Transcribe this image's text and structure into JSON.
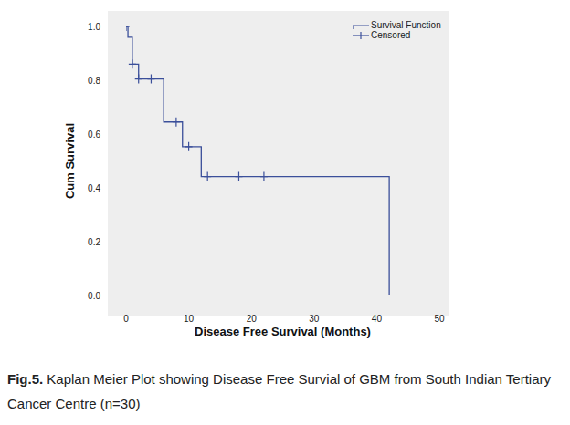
{
  "chart_data": {
    "type": "line",
    "caption_label": "Fig.5.",
    "caption": "Kaplan Meier Plot showing Disease Free Survial of GBM from South Indian Tertiary Cancer Centre (n=30)",
    "x_label": "Disease Free Survival (Months)",
    "y_label": "Cum Survival",
    "xlim": [
      0,
      50
    ],
    "xticks": [
      0,
      10,
      20,
      30,
      40,
      50
    ],
    "ylim": [
      0,
      1
    ],
    "yticks": [
      {
        "value": 0,
        "label": "0.0"
      },
      0.2,
      0.4,
      0.6,
      0.8,
      {
        "value": 1,
        "label": "1.0"
      }
    ],
    "grid": false,
    "legend": "upper right",
    "series": [
      {
        "name": "Survival Function",
        "type": "line",
        "line_style": "step",
        "color": "#3b4f9a",
        "x": [
          0,
          0.3,
          1,
          2,
          6,
          9,
          12,
          42
        ],
        "values": [
          1.0,
          0.96,
          0.86,
          0.805,
          0.645,
          0.553,
          0.442,
          0
        ]
      },
      {
        "name": "Censored",
        "type": "scatter",
        "marker": "plus",
        "color": "#3b4f9a",
        "x": [
          0,
          1,
          2,
          4,
          8,
          10,
          13,
          18,
          22
        ],
        "values": [
          1.0,
          0.86,
          0.805,
          0.805,
          0.645,
          0.553,
          0.442,
          0.442,
          0.442
        ]
      }
    ]
  }
}
